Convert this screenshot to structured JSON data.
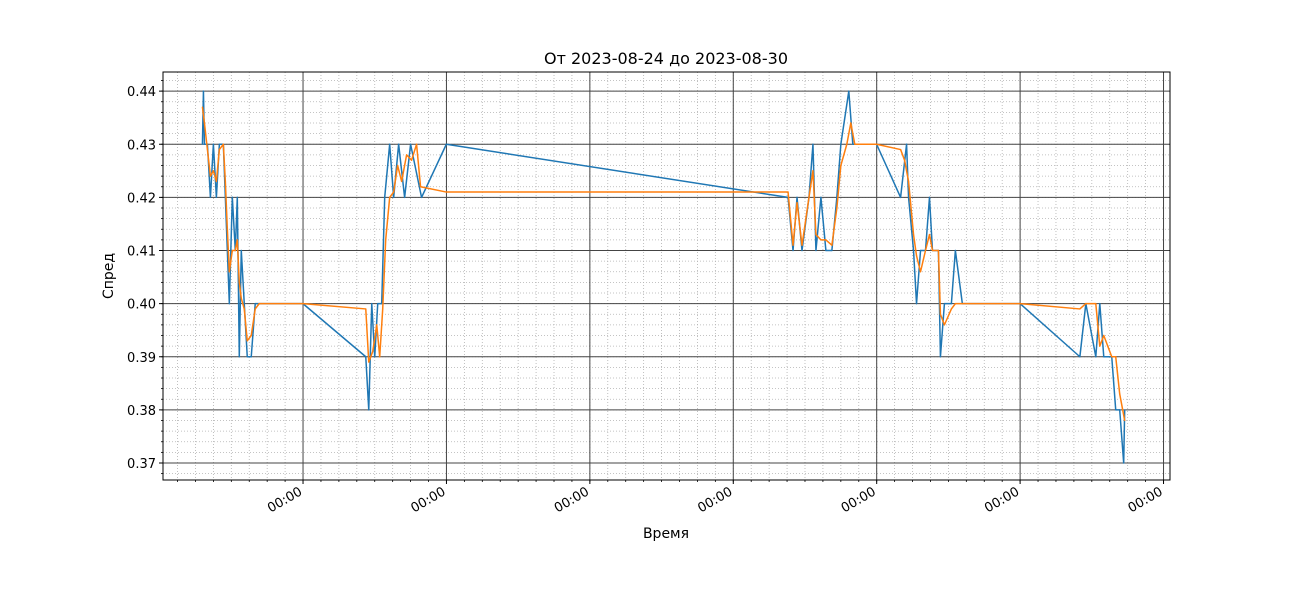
{
  "chart_data": {
    "type": "line",
    "title": "От 2023-08-24 до 2023-08-30",
    "xlabel": "Время",
    "ylabel": "Спред",
    "x_ticks": [
      "2023-08-25",
      "2023-08-26",
      "2023-08-27",
      "2023-08-28",
      "2023-08-29",
      "2023-08-30",
      "2023-08-31"
    ],
    "x_tick_labels": [
      "00:00",
      "00:00",
      "00:00",
      "00:00",
      "00:00",
      "00:00",
      "00:00"
    ],
    "y_ticks": [
      0.37,
      0.38,
      0.39,
      0.4,
      0.41,
      0.42,
      0.43,
      0.44
    ],
    "y_tick_labels": [
      "0.37",
      "0.38",
      "0.39",
      "0.40",
      "0.41",
      "0.42",
      "0.43",
      "0.44"
    ],
    "xlim": [
      "2023-08-24T00:34",
      "2023-08-31T01:05"
    ],
    "ylim": [
      0.3668,
      0.4436
    ],
    "grid": true,
    "minor_grid": true,
    "series": [
      {
        "color": "#1f77b4",
        "style": "raw",
        "points": [
          [
            "2023-08-24T07:10",
            0.43
          ],
          [
            "2023-08-24T07:20",
            0.44
          ],
          [
            "2023-08-24T07:30",
            0.43
          ],
          [
            "2023-08-24T08:00",
            0.43
          ],
          [
            "2023-08-24T08:30",
            0.42
          ],
          [
            "2023-08-24T09:00",
            0.43
          ],
          [
            "2023-08-24T09:30",
            0.42
          ],
          [
            "2023-08-24T10:00",
            0.43
          ],
          [
            "2023-08-24T10:40",
            0.43
          ],
          [
            "2023-08-24T11:00",
            0.42
          ],
          [
            "2023-08-24T11:20",
            0.41
          ],
          [
            "2023-08-24T11:40",
            0.4
          ],
          [
            "2023-08-24T12:10",
            0.42
          ],
          [
            "2023-08-24T12:40",
            0.41
          ],
          [
            "2023-08-24T13:00",
            0.42
          ],
          [
            "2023-08-24T13:20",
            0.39
          ],
          [
            "2023-08-24T13:40",
            0.41
          ],
          [
            "2023-08-24T14:10",
            0.4
          ],
          [
            "2023-08-24T14:40",
            0.39
          ],
          [
            "2023-08-24T15:20",
            0.39
          ],
          [
            "2023-08-24T16:00",
            0.4
          ],
          [
            "2023-08-24T23:59",
            0.4
          ],
          [
            "2023-08-25T10:30",
            0.39
          ],
          [
            "2023-08-25T11:00",
            0.38
          ],
          [
            "2023-08-25T11:30",
            0.4
          ],
          [
            "2023-08-25T12:00",
            0.39
          ],
          [
            "2023-08-25T12:30",
            0.4
          ],
          [
            "2023-08-25T13:10",
            0.4
          ],
          [
            "2023-08-25T13:40",
            0.42
          ],
          [
            "2023-08-25T14:30",
            0.43
          ],
          [
            "2023-08-25T15:10",
            0.42
          ],
          [
            "2023-08-25T16:00",
            0.43
          ],
          [
            "2023-08-25T17:00",
            0.42
          ],
          [
            "2023-08-25T18:00",
            0.43
          ],
          [
            "2023-08-25T19:50",
            0.42
          ],
          [
            "2023-08-25T23:59",
            0.43
          ],
          [
            "2023-08-28T09:10",
            0.42
          ],
          [
            "2023-08-28T10:00",
            0.41
          ],
          [
            "2023-08-28T10:40",
            0.42
          ],
          [
            "2023-08-28T11:30",
            0.41
          ],
          [
            "2023-08-28T12:40",
            0.42
          ],
          [
            "2023-08-28T13:20",
            0.43
          ],
          [
            "2023-08-28T13:50",
            0.41
          ],
          [
            "2023-08-28T14:40",
            0.42
          ],
          [
            "2023-08-28T15:30",
            0.41
          ],
          [
            "2023-08-28T16:30",
            0.41
          ],
          [
            "2023-08-28T17:20",
            0.42
          ],
          [
            "2023-08-28T18:00",
            0.43
          ],
          [
            "2023-08-28T19:20",
            0.44
          ],
          [
            "2023-08-28T20:00",
            0.43
          ],
          [
            "2023-08-28T23:59",
            0.43
          ],
          [
            "2023-08-29T04:00",
            0.42
          ],
          [
            "2023-08-29T05:00",
            0.43
          ],
          [
            "2023-08-29T05:20",
            0.42
          ],
          [
            "2023-08-29T06:10",
            0.41
          ],
          [
            "2023-08-29T06:40",
            0.4
          ],
          [
            "2023-08-29T07:20",
            0.41
          ],
          [
            "2023-08-29T08:10",
            0.41
          ],
          [
            "2023-08-29T08:50",
            0.42
          ],
          [
            "2023-08-29T09:20",
            0.41
          ],
          [
            "2023-08-29T10:20",
            0.41
          ],
          [
            "2023-08-29T10:40",
            0.39
          ],
          [
            "2023-08-29T11:20",
            0.4
          ],
          [
            "2023-08-29T12:30",
            0.4
          ],
          [
            "2023-08-29T13:10",
            0.41
          ],
          [
            "2023-08-29T14:20",
            0.4
          ],
          [
            "2023-08-29T23:59",
            0.4
          ],
          [
            "2023-08-30T10:00",
            0.39
          ],
          [
            "2023-08-30T11:00",
            0.4
          ],
          [
            "2023-08-30T12:40",
            0.39
          ],
          [
            "2023-08-30T13:20",
            0.4
          ],
          [
            "2023-08-30T14:00",
            0.39
          ],
          [
            "2023-08-30T15:20",
            0.39
          ],
          [
            "2023-08-30T16:00",
            0.38
          ],
          [
            "2023-08-30T16:40",
            0.38
          ],
          [
            "2023-08-30T17:20",
            0.37
          ],
          [
            "2023-08-30T17:30",
            0.38
          ]
        ]
      },
      {
        "color": "#ff7f0e",
        "style": "smoothed",
        "points": [
          [
            "2023-08-24T07:10",
            0.437
          ],
          [
            "2023-08-24T07:30",
            0.434
          ],
          [
            "2023-08-24T08:00",
            0.429
          ],
          [
            "2023-08-24T08:30",
            0.424
          ],
          [
            "2023-08-24T09:00",
            0.425
          ],
          [
            "2023-08-24T09:30",
            0.423
          ],
          [
            "2023-08-24T10:00",
            0.429
          ],
          [
            "2023-08-24T10:40",
            0.43
          ],
          [
            "2023-08-24T11:00",
            0.423
          ],
          [
            "2023-08-24T11:20",
            0.414
          ],
          [
            "2023-08-24T11:40",
            0.406
          ],
          [
            "2023-08-24T12:10",
            0.41
          ],
          [
            "2023-08-24T12:40",
            0.41
          ],
          [
            "2023-08-24T13:00",
            0.412
          ],
          [
            "2023-08-24T13:20",
            0.404
          ],
          [
            "2023-08-24T13:40",
            0.401
          ],
          [
            "2023-08-24T14:10",
            0.399
          ],
          [
            "2023-08-24T14:40",
            0.393
          ],
          [
            "2023-08-24T15:20",
            0.394
          ],
          [
            "2023-08-24T16:00",
            0.399
          ],
          [
            "2023-08-24T16:40",
            0.4
          ],
          [
            "2023-08-24T23:59",
            0.4
          ],
          [
            "2023-08-25T10:30",
            0.399
          ],
          [
            "2023-08-25T11:00",
            0.389
          ],
          [
            "2023-08-25T11:40",
            0.391
          ],
          [
            "2023-08-25T12:20",
            0.396
          ],
          [
            "2023-08-25T12:50",
            0.39
          ],
          [
            "2023-08-25T13:20",
            0.399
          ],
          [
            "2023-08-25T13:50",
            0.412
          ],
          [
            "2023-08-25T14:30",
            0.42
          ],
          [
            "2023-08-25T15:10",
            0.421
          ],
          [
            "2023-08-25T15:50",
            0.426
          ],
          [
            "2023-08-25T16:30",
            0.423
          ],
          [
            "2023-08-25T17:20",
            0.428
          ],
          [
            "2023-08-25T18:10",
            0.427
          ],
          [
            "2023-08-25T19:00",
            0.43
          ],
          [
            "2023-08-25T19:40",
            0.422
          ],
          [
            "2023-08-25T23:59",
            0.421
          ],
          [
            "2023-08-28T09:10",
            0.421
          ],
          [
            "2023-08-28T10:00",
            0.411
          ],
          [
            "2023-08-28T10:40",
            0.419
          ],
          [
            "2023-08-28T11:30",
            0.411
          ],
          [
            "2023-08-28T12:40",
            0.42
          ],
          [
            "2023-08-28T13:20",
            0.425
          ],
          [
            "2023-08-28T13:50",
            0.413
          ],
          [
            "2023-08-28T14:40",
            0.412
          ],
          [
            "2023-08-28T15:30",
            0.412
          ],
          [
            "2023-08-28T16:30",
            0.411
          ],
          [
            "2023-08-28T17:20",
            0.418
          ],
          [
            "2023-08-28T18:00",
            0.426
          ],
          [
            "2023-08-28T19:00",
            0.43
          ],
          [
            "2023-08-28T19:40",
            0.434
          ],
          [
            "2023-08-28T20:20",
            0.43
          ],
          [
            "2023-08-28T23:59",
            0.43
          ],
          [
            "2023-08-29T04:00",
            0.429
          ],
          [
            "2023-08-29T04:40",
            0.427
          ],
          [
            "2023-08-29T05:20",
            0.423
          ],
          [
            "2023-08-29T06:10",
            0.413
          ],
          [
            "2023-08-29T06:40",
            0.409
          ],
          [
            "2023-08-29T07:20",
            0.406
          ],
          [
            "2023-08-29T08:10",
            0.41
          ],
          [
            "2023-08-29T08:50",
            0.413
          ],
          [
            "2023-08-29T09:20",
            0.41
          ],
          [
            "2023-08-29T10:20",
            0.41
          ],
          [
            "2023-08-29T10:40",
            0.398
          ],
          [
            "2023-08-29T11:20",
            0.396
          ],
          [
            "2023-08-29T12:30",
            0.399
          ],
          [
            "2023-08-29T13:10",
            0.4
          ],
          [
            "2023-08-29T14:20",
            0.4
          ],
          [
            "2023-08-29T23:59",
            0.4
          ],
          [
            "2023-08-30T10:00",
            0.399
          ],
          [
            "2023-08-30T11:00",
            0.4
          ],
          [
            "2023-08-30T12:40",
            0.4
          ],
          [
            "2023-08-30T13:20",
            0.392
          ],
          [
            "2023-08-30T14:00",
            0.394
          ],
          [
            "2023-08-30T15:20",
            0.39
          ],
          [
            "2023-08-30T16:00",
            0.39
          ],
          [
            "2023-08-30T16:40",
            0.383
          ],
          [
            "2023-08-30T17:20",
            0.379
          ],
          [
            "2023-08-30T17:30",
            0.378
          ]
        ]
      }
    ]
  }
}
